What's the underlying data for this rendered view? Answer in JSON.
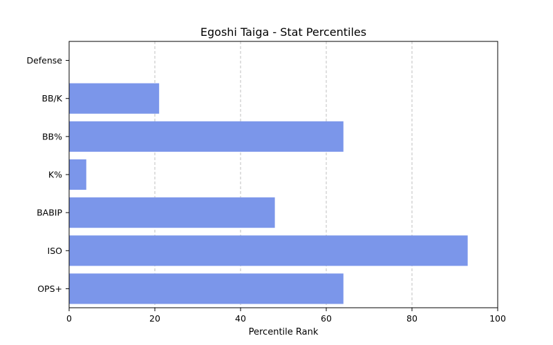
{
  "chart_data": {
    "type": "bar",
    "orientation": "horizontal",
    "title": "Egoshi Taiga - Stat Percentiles",
    "xlabel": "Percentile Rank",
    "ylabel": "",
    "xlim": [
      0,
      100
    ],
    "xticks": [
      0,
      20,
      40,
      60,
      80,
      100
    ],
    "grid": "x-dashed",
    "bar_color": "#7b96ea",
    "categories": [
      "OPS+",
      "ISO",
      "BABIP",
      "K%",
      "BB%",
      "BB/K",
      "Defense"
    ],
    "values": [
      64,
      93,
      48,
      4,
      64,
      21,
      0
    ]
  }
}
